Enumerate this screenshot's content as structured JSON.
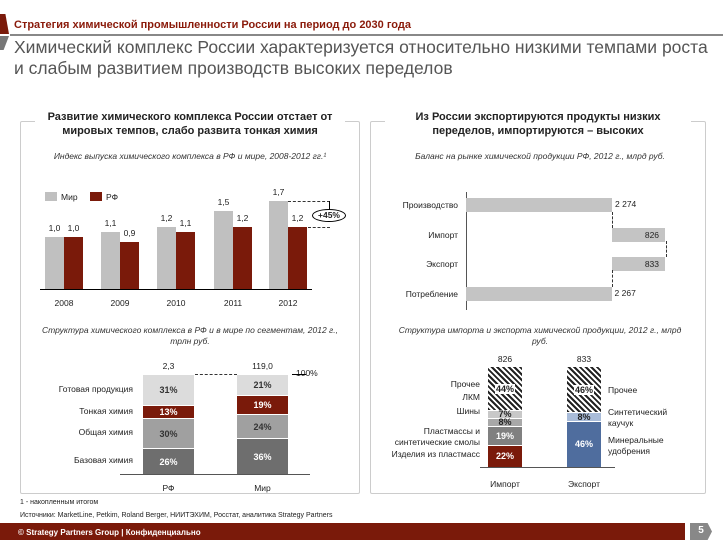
{
  "header": {
    "kicker": "Стратегия химической промышленности России на период до 2030 года",
    "title": "Химический комплекс России характеризуется относительно низкими темпами роста и слабым развитием производств высоких переделов"
  },
  "left": {
    "title": "Развитие химического комплекса России отстает от мировых темпов, слабо развита тонкая химия"
  },
  "right": {
    "title": "Из России экспортируются продукты низких переделов, импортируются – высоких"
  },
  "chart_data": [
    {
      "type": "bar",
      "title": "Индекс выпуска химического комплекса в РФ и мире, 2008-2012 гг.¹",
      "categories": [
        "2008",
        "2009",
        "2010",
        "2011",
        "2012"
      ],
      "series": [
        {
          "name": "Мир",
          "color": "#c0c0c0",
          "values": [
            1.0,
            1.1,
            1.2,
            1.5,
            1.7
          ],
          "labels": [
            "1,0",
            "1,1",
            "1,2",
            "1,5",
            "1,7"
          ]
        },
        {
          "name": "РФ",
          "color": "#7a1a0a",
          "values": [
            1.0,
            0.9,
            1.1,
            1.2,
            1.2
          ],
          "labels": [
            "1,0",
            "0,9",
            "1,1",
            "1,2",
            "1,2"
          ]
        }
      ],
      "annotation": "+45%",
      "ylim": [
        0,
        1.8
      ]
    },
    {
      "type": "bar",
      "stacked": true,
      "title": "Структура химического комплекса в РФ и в мире по сегментам, 2012 г., трлн руб.",
      "categories": [
        "РФ",
        "Мир"
      ],
      "totals": [
        "2,3",
        "119,0"
      ],
      "total_marker": "100%",
      "segments": [
        {
          "name": "Базовая химия",
          "color": "#6e6e6e",
          "values": [
            26,
            36
          ]
        },
        {
          "name": "Общая химия",
          "color": "#a0a0a0",
          "values": [
            30,
            24
          ]
        },
        {
          "name": "Тонкая химия",
          "color": "#7a1a0a",
          "values": [
            13,
            19
          ]
        },
        {
          "name": "Готовая продукция",
          "color": "#dcdcdc",
          "values": [
            31,
            21
          ]
        }
      ]
    },
    {
      "type": "bar",
      "subtype": "waterfall",
      "title": "Баланс на рынке химической продукции РФ, 2012 г., млрд руб.",
      "categories": [
        "Производство",
        "Импорт",
        "Экспорт",
        "Потребление"
      ],
      "values": [
        2274,
        826,
        -833,
        2267
      ],
      "labels": [
        "2 274",
        "826",
        "833",
        "2 267"
      ]
    },
    {
      "type": "bar",
      "stacked": true,
      "title": "Структура импорта и экспорта химической продукции, 2012 г., млрд руб.",
      "categories": [
        "Импорт",
        "Экспорт"
      ],
      "totals": [
        "826",
        "833"
      ],
      "import_segments": [
        {
          "name": "Изделия из пластмасс",
          "value": 22,
          "color": "#7a1a0a"
        },
        {
          "name": "Пластмассы и синтетические смолы",
          "value": 19,
          "color": "#808080"
        },
        {
          "name": "Шины",
          "value": 8,
          "color": "#a8a8a8"
        },
        {
          "name": "ЛКМ",
          "value": 7,
          "color": "#c8c8c8"
        },
        {
          "name": "Прочее",
          "value": 44,
          "color": "hatch"
        }
      ],
      "export_segments": [
        {
          "name": "Минеральные удобрения",
          "value": 46,
          "color": "#4f6d9e"
        },
        {
          "name": "Синтетический каучук",
          "value": 8,
          "color": "#a9bcd9"
        },
        {
          "name": "Прочее",
          "value": 46,
          "color": "hatch"
        }
      ]
    }
  ],
  "notes": {
    "footnote": "1 - накопленным итогом",
    "sources": "Источники: MarketLine, Petkim, Roland Berger, НИИТЭХИМ, Росстат, аналитика Strategy Partners"
  },
  "footer": {
    "text": "© Strategy Partners Group | Конфиденциально",
    "page": "5"
  }
}
